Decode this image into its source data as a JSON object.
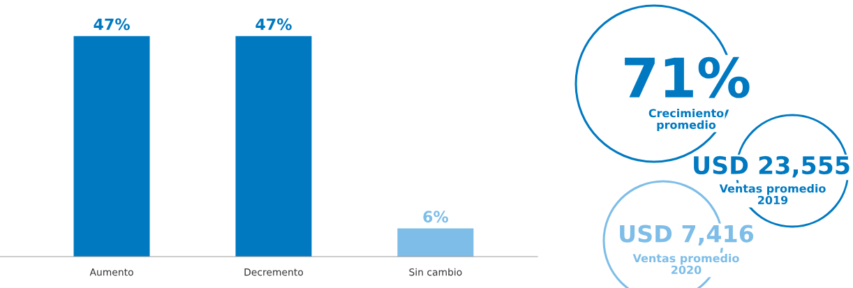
{
  "chart_data": [
    {
      "type": "bar",
      "categories": [
        "Aumento",
        "Decremento",
        "Sin cambio"
      ],
      "values": [
        47,
        47,
        6
      ],
      "value_labels": [
        "47%",
        "47%",
        "6%"
      ],
      "colors": [
        "#0079c1",
        "#0079c1",
        "#7dbde8"
      ],
      "grid": false,
      "legend": false
    },
    {
      "type": "other",
      "annotations": [
        "71%",
        "Crecimiento\npromedio",
        "USD 23,555",
        "Ventas promedio\n2019",
        "USD 7,416",
        "Ventas promedio\n2020"
      ],
      "colors": [
        "#0079c1",
        "#0079c1",
        "#7dbde8"
      ]
    }
  ]
}
